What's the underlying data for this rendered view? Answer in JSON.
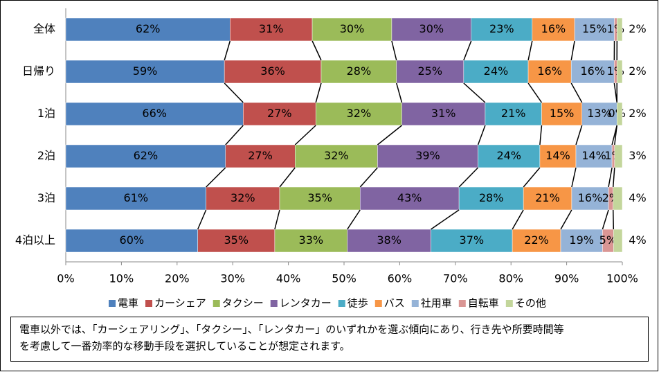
{
  "chart_data": {
    "type": "stacked-bar-100",
    "categories": [
      "全体",
      "日帰り",
      "1泊",
      "2泊",
      "3泊",
      "4泊以上"
    ],
    "series": [
      {
        "name": "電車",
        "color": "#4f81bd",
        "values": [
          62,
          59,
          66,
          62,
          61,
          60
        ],
        "value_labels": [
          "62%",
          "59%",
          "66%",
          "62%",
          "61%",
          "60%"
        ]
      },
      {
        "name": "カーシェア",
        "color": "#c0504d",
        "values": [
          31,
          36,
          27,
          27,
          32,
          35
        ],
        "value_labels": [
          "31%",
          "36%",
          "27%",
          "27%",
          "32%",
          "35%"
        ]
      },
      {
        "name": "タクシー",
        "color": "#9bbb59",
        "values": [
          30,
          28,
          32,
          32,
          35,
          33
        ],
        "value_labels": [
          "30%",
          "28%",
          "32%",
          "32%",
          "35%",
          "33%"
        ]
      },
      {
        "name": "レンタカー",
        "color": "#8064a2",
        "values": [
          30,
          25,
          31,
          39,
          43,
          38
        ],
        "value_labels": [
          "30%",
          "25%",
          "31%",
          "39%",
          "43%",
          "38%"
        ]
      },
      {
        "name": "徒歩",
        "color": "#4bacc6",
        "values": [
          23,
          24,
          21,
          24,
          28,
          37
        ],
        "value_labels": [
          "23%",
          "24%",
          "21%",
          "24%",
          "28%",
          "37%"
        ]
      },
      {
        "name": "バス",
        "color": "#f79646",
        "values": [
          16,
          16,
          15,
          14,
          21,
          22
        ],
        "value_labels": [
          "16%",
          "16%",
          "15%",
          "14%",
          "21%",
          "22%"
        ]
      },
      {
        "name": "社用車",
        "color": "#95b3d7",
        "values": [
          15,
          16,
          13,
          14,
          16,
          19
        ],
        "value_labels": [
          "15%",
          "16%",
          "13%",
          "14%",
          "16%",
          "19%"
        ]
      },
      {
        "name": "自転車",
        "color": "#da9694",
        "values": [
          1,
          1,
          0,
          1,
          2,
          5
        ],
        "value_labels": [
          "1%",
          "1%",
          "0%",
          "1%",
          "2%",
          "5%"
        ]
      },
      {
        "name": "その他",
        "color": "#c3d69b",
        "values": [
          2,
          2,
          2,
          3,
          4,
          4
        ],
        "value_labels": [
          "2%",
          "2%",
          "2%",
          "3%",
          "4%",
          "4%"
        ]
      }
    ],
    "xlim": [
      0,
      100
    ],
    "xticks": [
      {
        "value": 0,
        "label": "0%"
      },
      {
        "value": 10,
        "label": "10%"
      },
      {
        "value": 20,
        "label": "20%"
      },
      {
        "value": 30,
        "label": "30%"
      },
      {
        "value": 40,
        "label": "40%"
      },
      {
        "value": 50,
        "label": "50%"
      },
      {
        "value": 60,
        "label": "60%"
      },
      {
        "value": 70,
        "label": "70%"
      },
      {
        "value": 80,
        "label": "80%"
      },
      {
        "value": 90,
        "label": "90%"
      },
      {
        "value": 100,
        "label": "100%"
      }
    ],
    "legend": "bottom"
  },
  "note": {
    "lines": [
      "電車以外では、「カーシェアリング」、「タクシー」、「レンタカー」のいずれかを選ぶ傾向にあり、行き先や所要時間等",
      "を考慮して一番効率的な移動手段を選択していることが想定されます。"
    ]
  }
}
